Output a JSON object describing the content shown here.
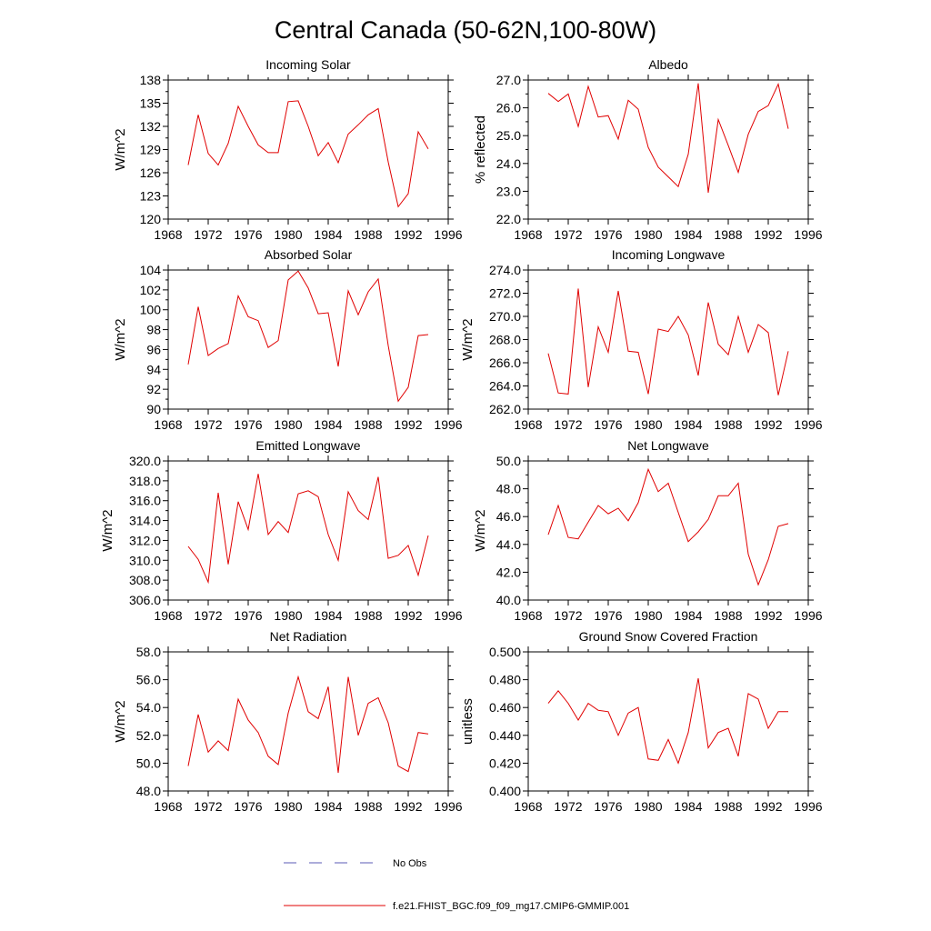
{
  "figure": {
    "title": "Central Canada (50-62N,100-80W)",
    "legend": [
      {
        "label": "No Obs",
        "color": "#5a5ab4",
        "dash": true
      },
      {
        "label": "f.e21.FHIST_BGC.f09_f09_mg17.CMIP6-GMMIP.001",
        "color": "#e00000",
        "dash": false
      }
    ]
  },
  "chart_data": [
    {
      "type": "line",
      "title": "Incoming Solar",
      "ylabel": "W/m^2",
      "xlim": [
        1968,
        1996
      ],
      "ylim": [
        120,
        138
      ],
      "xticks": [
        "1968",
        "1972",
        "1976",
        "1980",
        "1984",
        "1988",
        "1992",
        "1996"
      ],
      "yticks": [
        "120",
        "123",
        "126",
        "129",
        "132",
        "135",
        "138"
      ],
      "x": [
        1970,
        1971,
        1972,
        1973,
        1974,
        1975,
        1976,
        1977,
        1978,
        1979,
        1980,
        1981,
        1982,
        1983,
        1984,
        1985,
        1986,
        1987,
        1988,
        1989,
        1990,
        1991,
        1992,
        1993,
        1994
      ],
      "series": [
        {
          "name": "f.e21.FHIST_BGC.f09_f09_mg17.CMIP6-GMMIP.001",
          "values": [
            127.0,
            133.5,
            128.5,
            127.0,
            129.8,
            134.6,
            132.0,
            129.6,
            128.6,
            128.6,
            135.2,
            135.3,
            132.0,
            128.2,
            129.9,
            127.3,
            131.0,
            132.2,
            133.5,
            134.3,
            127.4,
            121.6,
            123.3,
            131.3,
            129.1
          ]
        }
      ]
    },
    {
      "type": "line",
      "title": "Albedo",
      "ylabel": "% reflected",
      "xlim": [
        1968,
        1996
      ],
      "ylim": [
        22.0,
        27.0
      ],
      "xticks": [
        "1968",
        "1972",
        "1976",
        "1980",
        "1984",
        "1988",
        "1992",
        "1996"
      ],
      "yticks": [
        "22.0",
        "23.0",
        "24.0",
        "25.0",
        "26.0",
        "27.0"
      ],
      "x": [
        1970,
        1971,
        1972,
        1973,
        1974,
        1975,
        1976,
        1977,
        1978,
        1979,
        1980,
        1981,
        1982,
        1983,
        1984,
        1985,
        1986,
        1987,
        1988,
        1989,
        1990,
        1991,
        1992,
        1993,
        1994
      ],
      "series": [
        {
          "name": "f.e21.FHIST_BGC.f09_f09_mg17.CMIP6-GMMIP.001",
          "values": [
            26.52,
            26.23,
            26.5,
            25.33,
            26.77,
            25.67,
            25.72,
            24.88,
            26.27,
            25.95,
            24.58,
            23.87,
            23.52,
            23.17,
            24.33,
            26.88,
            22.95,
            25.58,
            24.65,
            23.68,
            25.05,
            25.87,
            26.08,
            26.85,
            25.25
          ]
        }
      ]
    },
    {
      "type": "line",
      "title": "Absorbed Solar",
      "ylabel": "W/m^2",
      "xlim": [
        1968,
        1996
      ],
      "ylim": [
        90,
        104
      ],
      "xticks": [
        "1968",
        "1972",
        "1976",
        "1980",
        "1984",
        "1988",
        "1992",
        "1996"
      ],
      "yticks": [
        "90",
        "92",
        "94",
        "96",
        "98",
        "100",
        "102",
        "104"
      ],
      "x": [
        1970,
        1971,
        1972,
        1973,
        1974,
        1975,
        1976,
        1977,
        1978,
        1979,
        1980,
        1981,
        1982,
        1983,
        1984,
        1985,
        1986,
        1987,
        1988,
        1989,
        1990,
        1991,
        1992,
        1993,
        1994
      ],
      "series": [
        {
          "name": "f.e21.FHIST_BGC.f09_f09_mg17.CMIP6-GMMIP.001",
          "values": [
            94.5,
            100.3,
            95.4,
            96.1,
            96.6,
            101.4,
            99.3,
            98.9,
            96.2,
            96.9,
            103.0,
            103.9,
            102.2,
            99.6,
            99.7,
            94.3,
            101.9,
            99.5,
            101.8,
            103.1,
            96.4,
            90.8,
            92.2,
            97.4,
            97.5
          ]
        }
      ]
    },
    {
      "type": "line",
      "title": "Incoming Longwave",
      "ylabel": "W/m^2",
      "xlim": [
        1968,
        1996
      ],
      "ylim": [
        262.0,
        274.0
      ],
      "xticks": [
        "1968",
        "1972",
        "1976",
        "1980",
        "1984",
        "1988",
        "1992",
        "1996"
      ],
      "yticks": [
        "262.0",
        "264.0",
        "266.0",
        "268.0",
        "270.0",
        "272.0",
        "274.0"
      ],
      "x": [
        1970,
        1971,
        1972,
        1973,
        1974,
        1975,
        1976,
        1977,
        1978,
        1979,
        1980,
        1981,
        1982,
        1983,
        1984,
        1985,
        1986,
        1987,
        1988,
        1989,
        1990,
        1991,
        1992,
        1993,
        1994
      ],
      "series": [
        {
          "name": "f.e21.FHIST_BGC.f09_f09_mg17.CMIP6-GMMIP.001",
          "values": [
            266.8,
            263.4,
            263.3,
            272.4,
            263.9,
            269.1,
            266.9,
            272.2,
            267.0,
            266.9,
            263.3,
            268.9,
            268.7,
            270.0,
            268.4,
            264.9,
            271.2,
            267.6,
            266.7,
            270.0,
            266.9,
            269.3,
            268.6,
            263.2,
            267.0
          ]
        }
      ]
    },
    {
      "type": "line",
      "title": "Emitted Longwave",
      "ylabel": "W/m^2",
      "xlim": [
        1968,
        1996
      ],
      "ylim": [
        306.0,
        320.0
      ],
      "xticks": [
        "1968",
        "1972",
        "1976",
        "1980",
        "1984",
        "1988",
        "1992",
        "1996"
      ],
      "yticks": [
        "306.0",
        "308.0",
        "310.0",
        "312.0",
        "314.0",
        "316.0",
        "318.0",
        "320.0"
      ],
      "x": [
        1970,
        1971,
        1972,
        1973,
        1974,
        1975,
        1976,
        1977,
        1978,
        1979,
        1980,
        1981,
        1982,
        1983,
        1984,
        1985,
        1986,
        1987,
        1988,
        1989,
        1990,
        1991,
        1992,
        1993,
        1994
      ],
      "series": [
        {
          "name": "f.e21.FHIST_BGC.f09_f09_mg17.CMIP6-GMMIP.001",
          "values": [
            311.4,
            310.1,
            307.8,
            316.8,
            309.6,
            315.9,
            313.1,
            318.7,
            312.6,
            313.9,
            312.8,
            316.7,
            317.0,
            316.4,
            312.6,
            310.0,
            316.9,
            315.0,
            314.1,
            318.4,
            310.2,
            310.5,
            311.5,
            308.5,
            312.5
          ]
        }
      ]
    },
    {
      "type": "line",
      "title": "Net Longwave",
      "ylabel": "W/m^2",
      "xlim": [
        1968,
        1996
      ],
      "ylim": [
        40.0,
        50.0
      ],
      "xticks": [
        "1968",
        "1972",
        "1976",
        "1980",
        "1984",
        "1988",
        "1992",
        "1996"
      ],
      "yticks": [
        "40.0",
        "42.0",
        "44.0",
        "46.0",
        "48.0",
        "50.0"
      ],
      "x": [
        1970,
        1971,
        1972,
        1973,
        1974,
        1975,
        1976,
        1977,
        1978,
        1979,
        1980,
        1981,
        1982,
        1983,
        1984,
        1985,
        1986,
        1987,
        1988,
        1989,
        1990,
        1991,
        1992,
        1993,
        1994
      ],
      "series": [
        {
          "name": "f.e21.FHIST_BGC.f09_f09_mg17.CMIP6-GMMIP.001",
          "values": [
            44.7,
            46.8,
            44.5,
            44.4,
            45.6,
            46.8,
            46.2,
            46.6,
            45.7,
            47.0,
            49.4,
            47.8,
            48.4,
            46.3,
            44.2,
            44.9,
            45.8,
            47.5,
            47.5,
            48.4,
            43.3,
            41.1,
            42.9,
            45.3,
            45.5
          ]
        }
      ]
    },
    {
      "type": "line",
      "title": "Net Radiation",
      "ylabel": "W/m^2",
      "xlim": [
        1968,
        1996
      ],
      "ylim": [
        48.0,
        58.0
      ],
      "xticks": [
        "1968",
        "1972",
        "1976",
        "1980",
        "1984",
        "1988",
        "1992",
        "1996"
      ],
      "yticks": [
        "48.0",
        "50.0",
        "52.0",
        "54.0",
        "56.0",
        "58.0"
      ],
      "x": [
        1970,
        1971,
        1972,
        1973,
        1974,
        1975,
        1976,
        1977,
        1978,
        1979,
        1980,
        1981,
        1982,
        1983,
        1984,
        1985,
        1986,
        1987,
        1988,
        1989,
        1990,
        1991,
        1992,
        1993,
        1994
      ],
      "series": [
        {
          "name": "f.e21.FHIST_BGC.f09_f09_mg17.CMIP6-GMMIP.001",
          "values": [
            49.8,
            53.5,
            50.8,
            51.6,
            50.9,
            54.6,
            53.1,
            52.2,
            50.5,
            49.9,
            53.6,
            56.2,
            53.7,
            53.2,
            55.5,
            49.3,
            56.2,
            52.0,
            54.3,
            54.7,
            52.9,
            49.8,
            49.4,
            52.2,
            52.1
          ]
        }
      ]
    },
    {
      "type": "line",
      "title": "Ground Snow Covered Fraction",
      "ylabel": "unitless",
      "xlim": [
        1968,
        1996
      ],
      "ylim": [
        0.4,
        0.5
      ],
      "xticks": [
        "1968",
        "1972",
        "1976",
        "1980",
        "1984",
        "1988",
        "1992",
        "1996"
      ],
      "yticks": [
        "0.400",
        "0.420",
        "0.440",
        "0.460",
        "0.480",
        "0.500"
      ],
      "x": [
        1970,
        1971,
        1972,
        1973,
        1974,
        1975,
        1976,
        1977,
        1978,
        1979,
        1980,
        1981,
        1982,
        1983,
        1984,
        1985,
        1986,
        1987,
        1988,
        1989,
        1990,
        1991,
        1992,
        1993,
        1994
      ],
      "series": [
        {
          "name": "f.e21.FHIST_BGC.f09_f09_mg17.CMIP6-GMMIP.001",
          "values": [
            0.463,
            0.472,
            0.463,
            0.451,
            0.463,
            0.458,
            0.457,
            0.44,
            0.456,
            0.46,
            0.423,
            0.422,
            0.437,
            0.42,
            0.442,
            0.481,
            0.431,
            0.442,
            0.445,
            0.425,
            0.47,
            0.466,
            0.445,
            0.457,
            0.457
          ]
        }
      ]
    }
  ]
}
